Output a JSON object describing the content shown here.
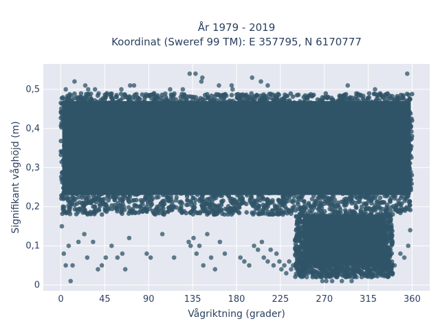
{
  "chart_data": {
    "type": "scatter",
    "title": [
      "År 1979 - 2019",
      "Koordinat (Sweref 99 TM): E 357795, N 6170777"
    ],
    "xlabel": "Vågriktning (grader)",
    "ylabel": "Signifikant våghöjd (m)",
    "xlim": [
      -18,
      378
    ],
    "ylim": [
      -0.015,
      0.565
    ],
    "xticks": [
      0,
      45,
      90,
      135,
      180,
      225,
      270,
      315,
      360
    ],
    "xtick_labels": [
      "0",
      "45",
      "90",
      "135",
      "180",
      "225",
      "270",
      "315",
      "360"
    ],
    "yticks": [
      0,
      0.1,
      0.2,
      0.3,
      0.4,
      0.5
    ],
    "ytick_labels": [
      "0",
      "0,1",
      "0,2",
      "0,3",
      "0,4",
      "0,5"
    ],
    "grid": true,
    "marker_color": "#2f5468",
    "background": "#e5e8f0",
    "dense_regions": [
      {
        "x": [
          0,
          360
        ],
        "y": [
          0.18,
          0.49
        ]
      },
      {
        "x": [
          240,
          340
        ],
        "y": [
          0.02,
          0.18
        ]
      }
    ],
    "series": [
      {
        "x": [
          1,
          3,
          5,
          8,
          10,
          12,
          18,
          24,
          27,
          33,
          38,
          42,
          46,
          52,
          58,
          63,
          66,
          70,
          88,
          92,
          104,
          116,
          131,
          133,
          136,
          139,
          142,
          146,
          150,
          154,
          158,
          163,
          168,
          184,
          188,
          193,
          198,
          202,
          206,
          208,
          212,
          215,
          218,
          221,
          224,
          226,
          229,
          231,
          234,
          236,
          238,
          243,
          246,
          252,
          258,
          262,
          268,
          272,
          278,
          283,
          288,
          292,
          298,
          303,
          308,
          313,
          318,
          323,
          326,
          330,
          334,
          342,
          348,
          352,
          356,
          358,
          25,
          75,
          125,
          175,
          145,
          205,
          28,
          62,
          112,
          162,
          212,
          5,
          14,
          35,
          71,
          132,
          138,
          144,
          176,
          196,
          294,
          322,
          355
        ],
        "y": [
          0.15,
          0.08,
          0.05,
          0.1,
          0.01,
          0.05,
          0.11,
          0.13,
          0.07,
          0.11,
          0.04,
          0.05,
          0.07,
          0.1,
          0.07,
          0.08,
          0.04,
          0.12,
          0.08,
          0.07,
          0.13,
          0.07,
          0.11,
          0.1,
          0.12,
          0.08,
          0.1,
          0.05,
          0.13,
          0.07,
          0.04,
          0.11,
          0.08,
          0.07,
          0.06,
          0.05,
          0.1,
          0.09,
          0.11,
          0.07,
          0.06,
          0.09,
          0.05,
          0.08,
          0.06,
          0.04,
          0.05,
          0.03,
          0.06,
          0.04,
          0.05,
          0.04,
          0.03,
          0.02,
          0.02,
          0.02,
          0.01,
          0.01,
          0.01,
          0.02,
          0.01,
          0.02,
          0.01,
          0.02,
          0.03,
          0.03,
          0.02,
          0.04,
          0.05,
          0.03,
          0.06,
          0.05,
          0.08,
          0.07,
          0.1,
          0.14,
          0.51,
          0.51,
          0.5,
          0.51,
          0.53,
          0.52,
          0.5,
          0.5,
          0.5,
          0.51,
          0.51,
          0.5,
          0.52,
          0.5,
          0.51,
          0.54,
          0.54,
          0.52,
          0.5,
          0.53,
          0.51,
          0.5,
          0.54
        ]
      }
    ]
  }
}
